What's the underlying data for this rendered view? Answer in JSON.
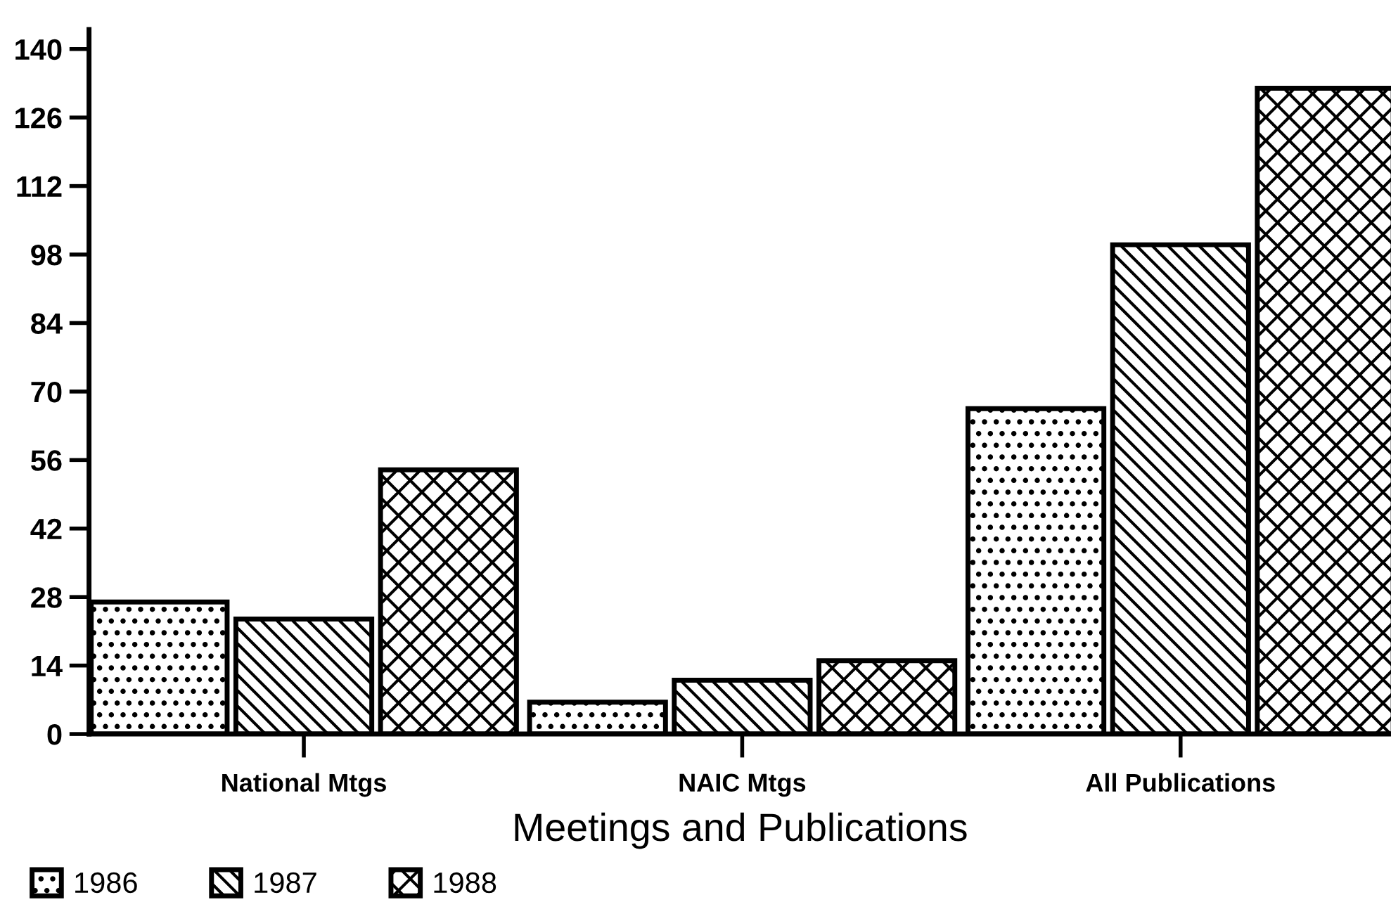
{
  "chart_data": {
    "type": "bar",
    "xlabel": "Meetings and Publications",
    "categories": [
      "National Mtgs",
      "NAIC Mtgs",
      "All Publications"
    ],
    "series": [
      {
        "name": "1986",
        "color": "#000000",
        "values": [
          27,
          6.5,
          66.5
        ]
      },
      {
        "name": "1987",
        "color": "#000000",
        "values": [
          23.5,
          11,
          100
        ]
      },
      {
        "name": "1988",
        "color": "#000000",
        "values": [
          54,
          15,
          132
        ]
      }
    ],
    "ylim": [
      0,
      144
    ],
    "yticks": [
      0,
      14,
      28,
      42,
      56,
      70,
      84,
      98,
      112,
      126,
      140
    ],
    "grid": false,
    "legend": "bottom left"
  }
}
